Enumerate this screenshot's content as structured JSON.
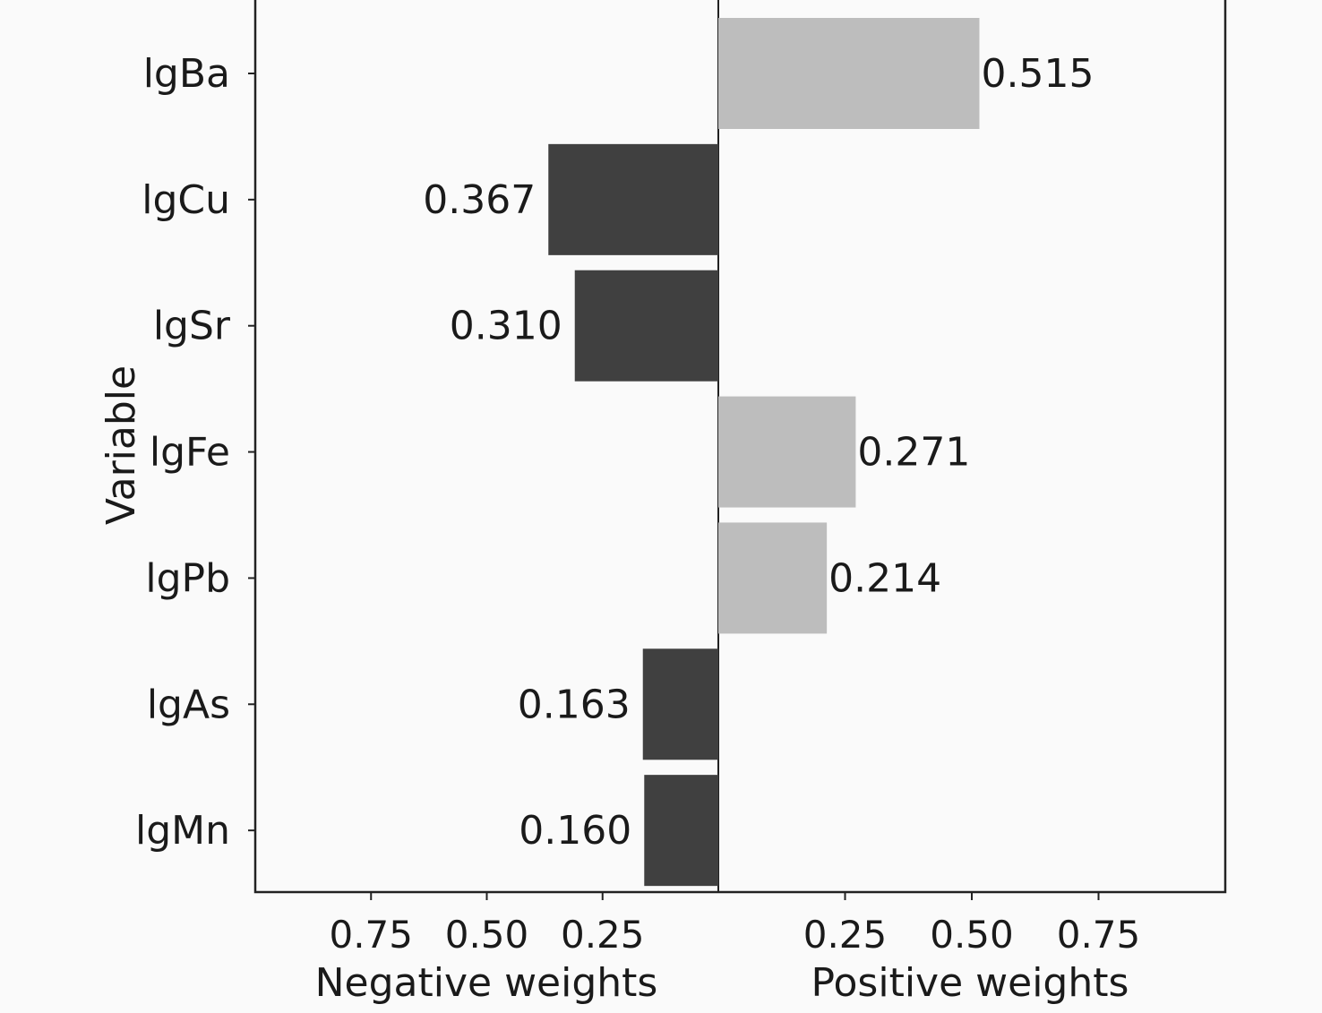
{
  "chart_data": {
    "type": "bar",
    "orientation": "horizontal",
    "ylabel": "Variable",
    "panels": [
      {
        "name": "Negative weights",
        "xlim": [
          1.0,
          0.0
        ],
        "ticks": [
          "0.75",
          "0.50",
          "0.25"
        ],
        "tick_values": [
          0.75,
          0.5,
          0.25
        ]
      },
      {
        "name": "Positive weights",
        "xlim": [
          0.0,
          1.0
        ],
        "ticks": [
          "0.25",
          "0.50",
          "0.75"
        ],
        "tick_values": [
          0.25,
          0.5,
          0.75
        ]
      }
    ],
    "categories": [
      "lgBa",
      "lgCu",
      "lgSr",
      "lgFe",
      "lgPb",
      "lgAs",
      "lgMn"
    ],
    "values": [
      0.515,
      0.367,
      0.31,
      0.271,
      0.214,
      0.163,
      0.16
    ],
    "labels": [
      "0.515",
      "0.367",
      "0.310",
      "0.271",
      "0.214",
      "0.163",
      "0.160"
    ],
    "direction": [
      "positive",
      "negative",
      "negative",
      "positive",
      "positive",
      "negative",
      "negative"
    ],
    "colors": {
      "positive": "#bdbdbd",
      "negative": "#404040"
    },
    "grid": false,
    "legend": "none"
  }
}
